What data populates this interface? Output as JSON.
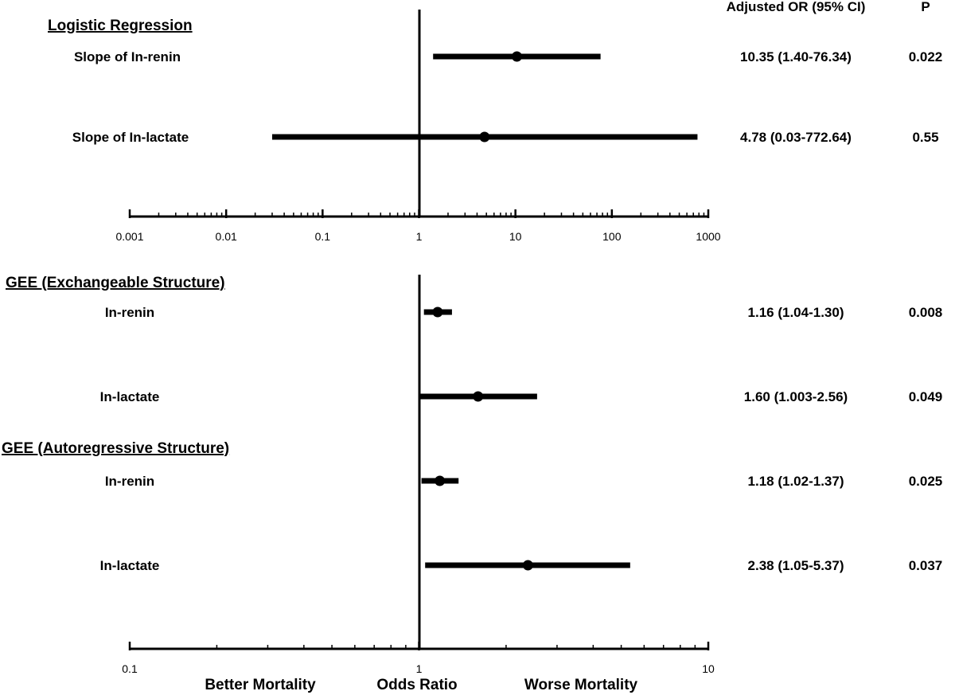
{
  "chart_data": [
    {
      "type": "forest",
      "section_title": "Logistic Regression",
      "column_headers": {
        "or": "Adjusted OR (95% CI)",
        "p": "P"
      },
      "x_scale": "log",
      "xlim": [
        0.001,
        1000
      ],
      "reference_line": 1,
      "ticks": [
        0.001,
        0.01,
        0.1,
        1,
        10,
        100,
        1000
      ],
      "tick_labels": [
        "0.001",
        "0.01",
        "0.1",
        "1",
        "10",
        "100",
        "1000"
      ],
      "rows": [
        {
          "label": "Slope of In-renin",
          "or": 10.35,
          "ci_low": 1.4,
          "ci_high": 76.34,
          "or_text": "10.35 (1.40-76.34)",
          "p_text": "0.022"
        },
        {
          "label": "Slope of In-lactate",
          "or": 4.78,
          "ci_low": 0.03,
          "ci_high": 772.64,
          "or_text": "4.78 (0.03-772.64)",
          "p_text": "0.55"
        }
      ]
    },
    {
      "type": "forest",
      "groups": [
        {
          "title": "GEE (Exchangeable Structure)",
          "rows": [
            {
              "label": "In-renin",
              "or": 1.16,
              "ci_low": 1.04,
              "ci_high": 1.3,
              "or_text": "1.16 (1.04-1.30)",
              "p_text": "0.008"
            },
            {
              "label": "In-lactate",
              "or": 1.6,
              "ci_low": 1.003,
              "ci_high": 2.56,
              "or_text": "1.60 (1.003-2.56)",
              "p_text": "0.049"
            }
          ]
        },
        {
          "title": "GEE (Autoregressive Structure)",
          "rows": [
            {
              "label": "In-renin",
              "or": 1.18,
              "ci_low": 1.02,
              "ci_high": 1.37,
              "or_text": "1.18 (1.02-1.37)",
              "p_text": "0.025"
            },
            {
              "label": "In-lactate",
              "or": 2.38,
              "ci_low": 1.05,
              "ci_high": 5.37,
              "or_text": "2.38 (1.05-5.37)",
              "p_text": "0.037"
            }
          ]
        }
      ],
      "x_scale": "log",
      "xlim": [
        0.1,
        10
      ],
      "reference_line": 1,
      "ticks": [
        0.1,
        1,
        10
      ],
      "tick_labels": [
        "0.1",
        "1",
        "10"
      ],
      "bottom_labels": {
        "left": "Better Mortality",
        "center": "Odds Ratio",
        "right": "Worse Mortality"
      }
    }
  ]
}
